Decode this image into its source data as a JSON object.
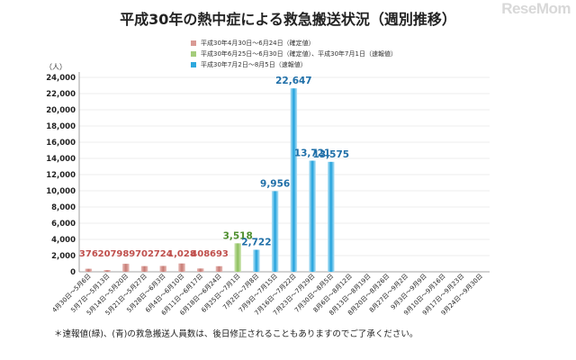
{
  "header": {
    "title": "平成30年の熱中症による救急搬送状況（週別推移）",
    "watermark": "ReseMom"
  },
  "legend": [
    {
      "label": "平成30年4月30日～6月24日（確定値）",
      "color": "#d99a94"
    },
    {
      "label": "平成30年6月25日～6月30日（確定値）、平成30年7月1日（速報値）",
      "color": "#a4cc7a"
    },
    {
      "label": "平成30年7月2日～8月5日（速報値）",
      "color": "#2ea8dd"
    }
  ],
  "note": "＊速報値(緑)、(青)の救急搬送人員数は、後日修正されることもありますのでご了承ください。",
  "colors": {
    "confirmed": "#c0504d",
    "mixed": "#4f8f2f",
    "preliminary": "#1f6fa8"
  },
  "chart_data": {
    "type": "bar",
    "unit": "（人）",
    "ylim": [
      0,
      24000
    ],
    "yticks": [
      "0",
      "2,000",
      "4,000",
      "6,000",
      "8,000",
      "10,000",
      "12,000",
      "14,000",
      "16,000",
      "18,000",
      "20,000",
      "22,000",
      "24,000"
    ],
    "categories": [
      "4月30日～5月6日",
      "5月7日～5月13日",
      "5月14日～5月20日",
      "5月21日～5月27日",
      "5月28日～6月3日",
      "6月4日～6月10日",
      "6月11日～6月17日",
      "6月18日～6月24日",
      "6月25日～7月1日",
      "7月2日～7月8日",
      "7月9日～7月15日",
      "7月16日～7月22日",
      "7月23日～7月29日",
      "7月30日～8月5日",
      "8月6日～8月12日",
      "8月13日～8月19日",
      "8月20日～8月26日",
      "8月27日～9月2日",
      "9月3日～9月9日",
      "9月10日～9月16日",
      "9月17日～9月23日",
      "9月24日～9月30日"
    ],
    "values": [
      376,
      207,
      989,
      702,
      724,
      1028,
      408,
      693,
      3518,
      2722,
      9956,
      22647,
      13721,
      13575,
      null,
      null,
      null,
      null,
      null,
      null,
      null,
      null
    ],
    "labels": [
      "376",
      "207",
      "989",
      "702",
      "724",
      "1,028",
      "408",
      "693",
      "3,518",
      "2,722",
      "9,956",
      "22,647",
      "13,721",
      "13,575",
      "",
      "",
      "",
      "",
      "",
      "",
      "",
      ""
    ],
    "group": [
      "confirmed",
      "confirmed",
      "confirmed",
      "confirmed",
      "confirmed",
      "confirmed",
      "confirmed",
      "confirmed",
      "mixed",
      "preliminary",
      "preliminary",
      "preliminary",
      "preliminary",
      "preliminary",
      "",
      "",
      "",
      "",
      "",
      "",
      "",
      ""
    ],
    "grid": true
  }
}
